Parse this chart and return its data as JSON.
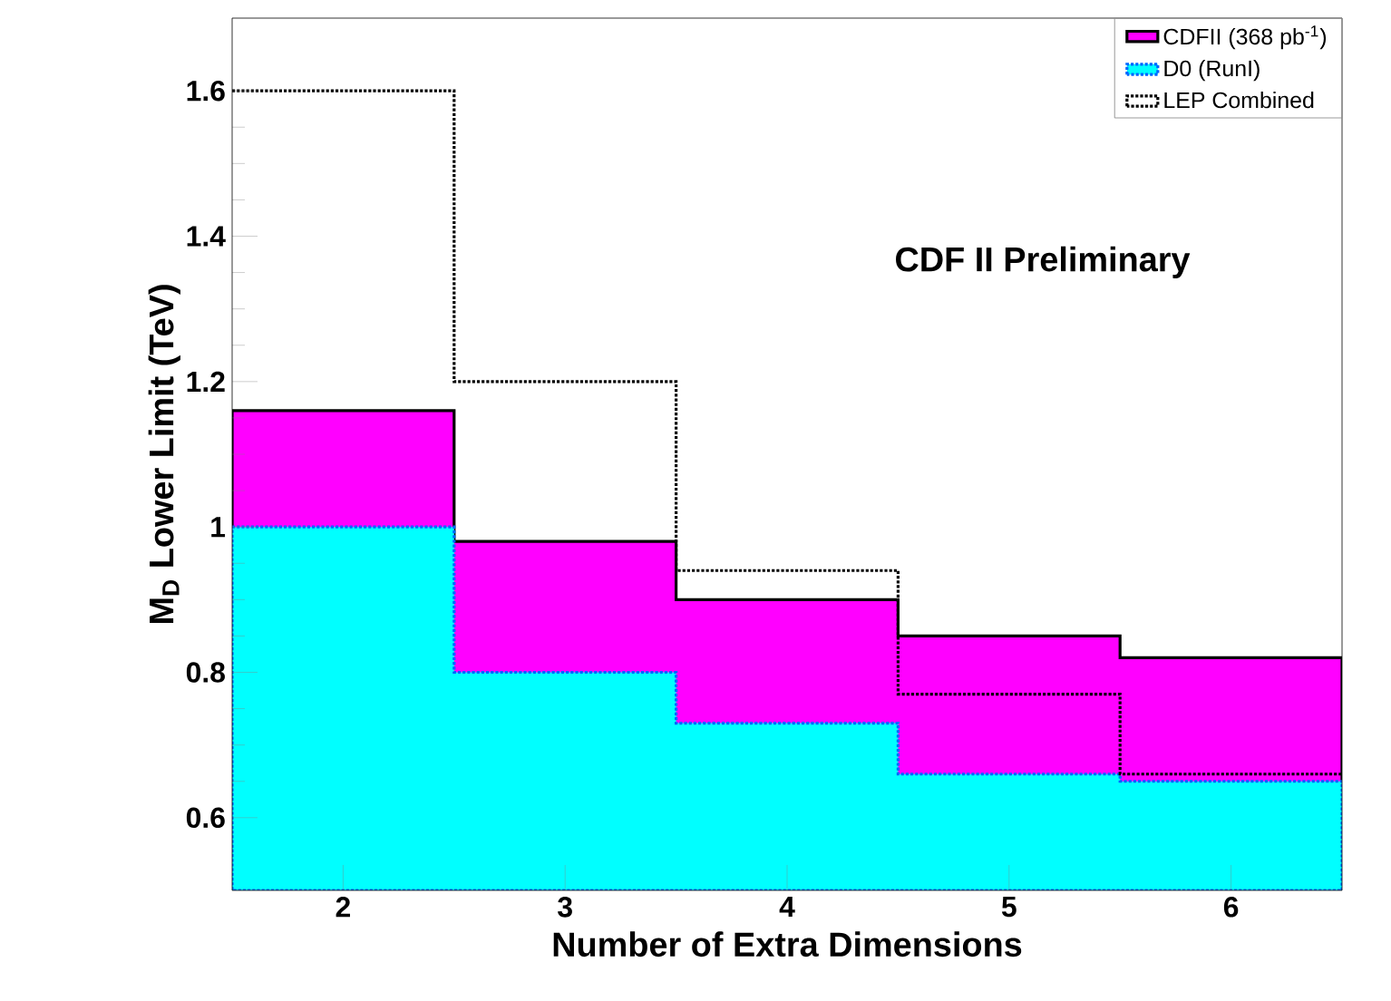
{
  "chart_data": {
    "type": "histogram",
    "xlabel": "Number of Extra Dimensions",
    "ylabel": "M$_{D}$ Lower Limit (TeV)",
    "annotations": [
      "CDF II Preliminary"
    ],
    "bins": [
      1.5,
      2.5,
      3.5,
      4.5,
      5.5,
      6.5
    ],
    "xlim": [
      1.5,
      6.5
    ],
    "ylim": [
      0.5,
      1.7
    ],
    "xticks": [
      2,
      3,
      4,
      5,
      6
    ],
    "yticks": [
      0.6,
      0.8,
      1,
      1.2,
      1.4,
      1.6
    ],
    "legend": "top right",
    "series": [
      {
        "name": "CDFII (368 pb$^{-1}$)",
        "color": "#ff00ff",
        "values": [
          1.16,
          0.98,
          0.9,
          0.85,
          0.82
        ],
        "line_style": "solid"
      },
      {
        "name": "D0 (RunI)",
        "color": "#00ffff",
        "values": [
          1.0,
          0.8,
          0.73,
          0.66,
          0.65
        ],
        "line_style": "dotted"
      },
      {
        "name": "LEP Combined",
        "type": "step",
        "color": "#000000",
        "x": [
          1.5,
          2.5,
          3.5,
          4.5,
          5.5,
          6.5
        ],
        "values": [
          1.6,
          1.2,
          0.94,
          0.77,
          0.66,
          0.66
        ],
        "line_style": "dotted"
      }
    ]
  }
}
